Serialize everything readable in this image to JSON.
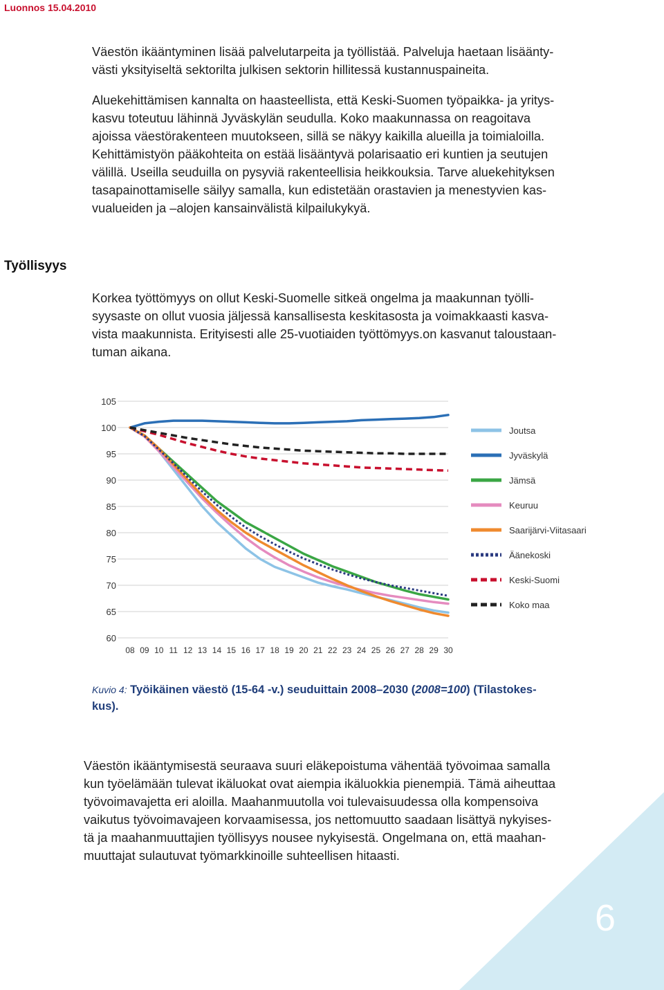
{
  "header": {
    "draft_label": "Luonnos 15.04.2010"
  },
  "paragraphs": {
    "p1": [
      "Väestön ikääntyminen lisää palvelutarpeita ja työllistää. Palveluja haetaan lisäänty-",
      "västi yksityiseltä sektorilta julkisen sektorin hillitessä kustannuspaineita."
    ],
    "p2": [
      "Aluekehittämisen kannalta on haasteellista, että Keski-Suomen työpaikka- ja yritys-",
      "kasvu toteutuu lähinnä Jyväskylän seudulla. Koko maakunnassa on reagoitava",
      "ajoissa väestörakenteen muutokseen, sillä se näkyy kaikilla alueilla ja toimialoilla.",
      "Kehittämistyön pääkohteita on estää lisääntyvä polarisaatio eri kuntien ja seutujen",
      "välillä. Useilla seuduilla on pysyviä rakenteellisia heikkouksia. Tarve aluekehityksen",
      "tasapainottamiselle säilyy samalla, kun edistetään orastavien ja menestyvien kas-",
      "vualueiden ja –alojen kansainvälistä kilpailukykyä."
    ],
    "section_heading": "Työllisyys",
    "p3": [
      "Korkea työttömyys on ollut Keski-Suomelle sitkeä ongelma ja maakunnan työlli-",
      "syysaste on ollut vuosia jäljessä kansallisesta keskitasosta ja voimakkaasti kasva-",
      "vista maakunnista. Erityisesti alle 25-vuotiaiden työttömyys.on kasvanut taloustaan-",
      "tuman aikana."
    ],
    "p4": [
      "Väestön ikääntymisestä seuraava suuri eläkepoistuma vähentää työvoimaa samalla",
      "kun työelämään tulevat ikäluokat ovat aiempia ikäluokkia pienempiä. Tämä aiheuttaa",
      "työvoimavajetta eri aloilla. Maahanmuutolla voi tulevaisuudessa olla kompensoiva",
      "vaikutus työvoimavajeen korvaamisessa, jos nettomuutto saadaan lisättyä nykyises-",
      "tä ja maahanmuuttajien työllisyys nousee nykyisestä. Ongelmana on, että maahan-",
      "muuttajat sulautuvat työmarkkinoille suhteellisen hitaasti."
    ]
  },
  "caption": {
    "label": "Kuvio 4:",
    "text_line1": " Työikäinen väestö (15-64 -v.) seuduittain 2008–2030 (",
    "text_italic": "2008=100",
    "text_line1_end": ") (Tilastokes-",
    "text_line2": "kus)."
  },
  "page_number": "6",
  "colors": {
    "draft": "#c8102e",
    "caption": "#1f3d7a",
    "corner": "#d3ebf4"
  },
  "chart_data": {
    "type": "line",
    "x": [
      "08",
      "09",
      "10",
      "11",
      "12",
      "13",
      "14",
      "15",
      "16",
      "17",
      "18",
      "19",
      "20",
      "21",
      "22",
      "23",
      "24",
      "25",
      "26",
      "27",
      "28",
      "29",
      "30"
    ],
    "ylim": [
      60,
      105
    ],
    "yticks": [
      "60",
      "65",
      "70",
      "75",
      "80",
      "85",
      "90",
      "95",
      "100",
      "105"
    ],
    "grid": true,
    "legend_placement": "right",
    "series": [
      {
        "name": "Joutsa",
        "color": "#8dc3e6",
        "dash": "solid",
        "values": [
          100,
          98.5,
          95.5,
          92,
          88.5,
          85,
          82,
          79.5,
          77,
          75,
          73.5,
          72.5,
          71.5,
          70.5,
          69.8,
          69.2,
          68.5,
          67.8,
          67.2,
          66.5,
          65.8,
          65.2,
          64.8
        ]
      },
      {
        "name": "Jyväskylä",
        "color": "#2b6fb6",
        "dash": "solid",
        "values": [
          100,
          100.8,
          101.1,
          101.3,
          101.3,
          101.3,
          101.2,
          101.1,
          101.0,
          100.9,
          100.8,
          100.8,
          100.9,
          101.0,
          101.1,
          101.2,
          101.4,
          101.5,
          101.6,
          101.7,
          101.8,
          102.0,
          102.4
        ]
      },
      {
        "name": "Jämsä",
        "color": "#3aa644",
        "dash": "solid",
        "values": [
          100,
          98.5,
          96,
          93.5,
          91,
          88.5,
          86,
          84,
          82,
          80.5,
          79,
          77.5,
          76,
          74.8,
          73.6,
          72.6,
          71.6,
          70.6,
          69.8,
          69.0,
          68.3,
          67.8,
          67.3
        ]
      },
      {
        "name": "Keuruu",
        "color": "#e58bbf",
        "dash": "solid",
        "values": [
          100,
          98.3,
          95.5,
          92.5,
          89.5,
          86.5,
          83.8,
          81.3,
          79,
          77,
          75.3,
          73.8,
          72.6,
          71.5,
          70.6,
          69.8,
          69.1,
          68.5,
          68.0,
          67.6,
          67.2,
          66.8,
          66.5
        ]
      },
      {
        "name": "Saarijärvi-Viitasaari",
        "color": "#ef8a2e",
        "dash": "solid",
        "values": [
          100,
          98.5,
          96,
          93,
          90,
          87,
          84.3,
          82,
          80,
          78.3,
          76.8,
          75.3,
          73.8,
          72.5,
          71.2,
          70,
          68.9,
          67.9,
          67,
          66.2,
          65.4,
          64.7,
          64.2
        ]
      },
      {
        "name": "Äänekoski",
        "color": "#2a3a80",
        "dash": "dot",
        "values": [
          100,
          98.4,
          95.8,
          93.2,
          90.5,
          87.8,
          85.3,
          83,
          81,
          79.3,
          77.8,
          76.4,
          75.1,
          74,
          73,
          72.1,
          71.3,
          70.6,
          70,
          69.5,
          69.0,
          68.5,
          68.0
        ]
      },
      {
        "name": "Keski-Suomi",
        "color": "#c8102e",
        "dash": "dash",
        "values": [
          100,
          99.3,
          98.6,
          97.8,
          97,
          96.3,
          95.6,
          95,
          94.5,
          94.1,
          93.8,
          93.5,
          93.2,
          93,
          92.8,
          92.6,
          92.4,
          92.3,
          92.2,
          92.1,
          92.0,
          91.9,
          91.8
        ]
      },
      {
        "name": "Koko maa",
        "color": "#222222",
        "dash": "dash",
        "values": [
          100,
          99.5,
          99,
          98.5,
          98,
          97.6,
          97.2,
          96.8,
          96.5,
          96.2,
          96,
          95.8,
          95.6,
          95.5,
          95.4,
          95.3,
          95.2,
          95.1,
          95.1,
          95.0,
          95.0,
          95.0,
          95.0
        ]
      }
    ]
  }
}
